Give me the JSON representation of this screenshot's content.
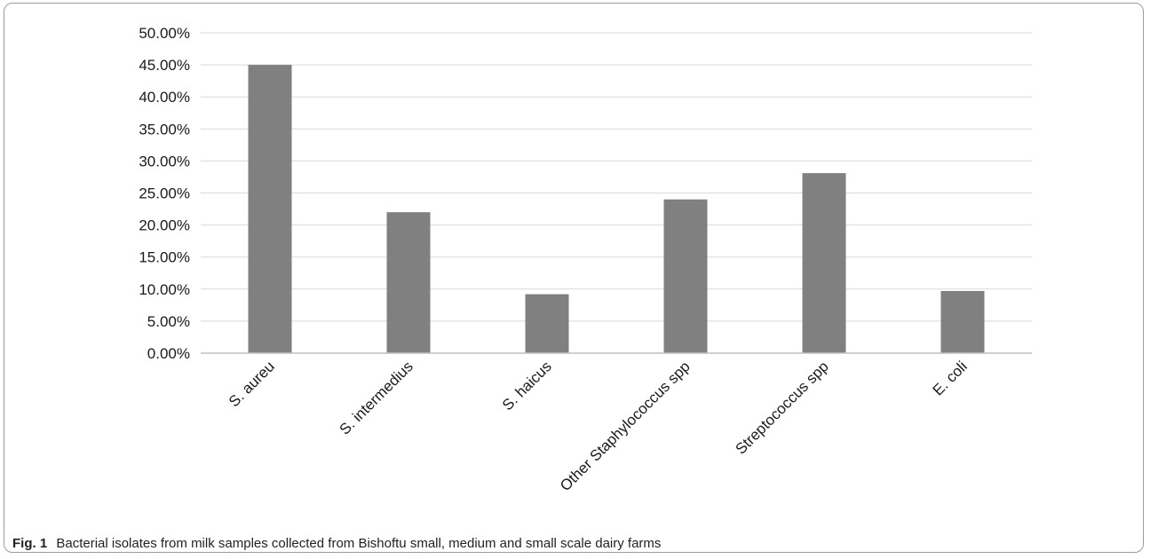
{
  "figure": {
    "label": "Fig. 1",
    "caption": "Bacterial isolates from milk samples collected from Bishoftu small, medium and small scale dairy farms"
  },
  "colors": {
    "bar": "#808080",
    "grid": "#d9d9d9",
    "axis": "#bfbfbf"
  },
  "chart_data": {
    "type": "bar",
    "categories": [
      "S. aureu",
      "S. intermedius",
      "S. haicus",
      "Other Staphylococcus spp",
      "Streptococcus spp",
      "E. coli"
    ],
    "values": [
      45.0,
      22.0,
      9.2,
      24.0,
      28.1,
      9.7
    ],
    "y_unit": "%",
    "ylim": [
      0,
      50
    ],
    "ytick_step": 5,
    "ytick_labels": [
      "0.00%",
      "5.00%",
      "10.00%",
      "15.00%",
      "20.00%",
      "25.00%",
      "30.00%",
      "35.00%",
      "40.00%",
      "45.00%",
      "50.00%"
    ],
    "grid": true,
    "legend": "none",
    "title": "",
    "xlabel": "",
    "ylabel": ""
  }
}
